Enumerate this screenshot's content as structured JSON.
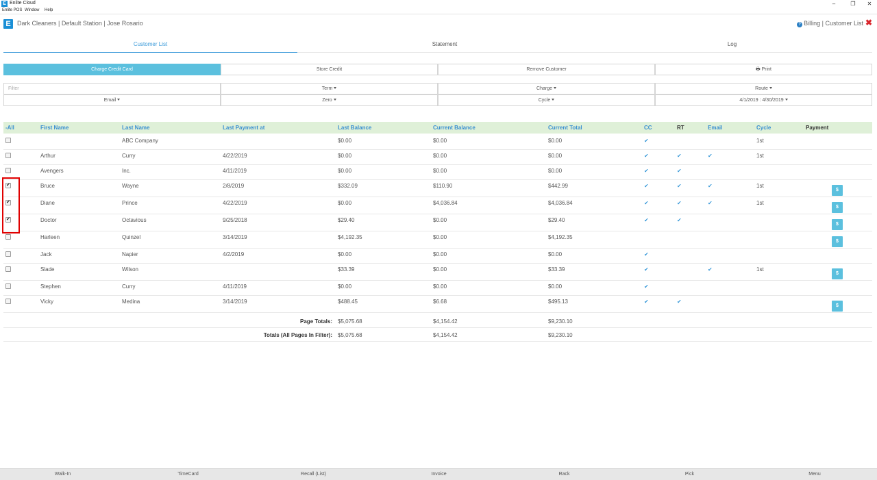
{
  "window": {
    "title": "Enlite Cloud",
    "app_icon": "E",
    "controls": {
      "minimize": "–",
      "restore": "❐",
      "close": "✕"
    }
  },
  "menubar": [
    "Enlite POS",
    "Window",
    "Help"
  ],
  "header": {
    "logo": "E",
    "breadcrumb": "Dark Cleaners | Default Station | Jose Rosario",
    "help_icon": "?",
    "right_label": "Billing | Customer List",
    "close_icon": "✖"
  },
  "tabs": [
    {
      "label": "Customer List",
      "active": true
    },
    {
      "label": "Statement",
      "active": false
    },
    {
      "label": "Log",
      "active": false
    }
  ],
  "actions": {
    "charge": "Charge Credit Card",
    "store_credit": "Store Credit",
    "remove": "Remove Customer",
    "print_icon": "🖶",
    "print": "Print"
  },
  "filters": {
    "filter_placeholder": "Filter",
    "term": "Term",
    "charge": "Charge",
    "route": "Route",
    "email": "Email",
    "zero": "Zero",
    "cycle": "Cycle",
    "date_range": "4/1/2019 : 4/30/2019"
  },
  "columns": {
    "all": "-All",
    "first": "First Name",
    "last": "Last Name",
    "last_payment": "Last Payment at",
    "last_balance": "Last Balance",
    "current_balance": "Current Balance",
    "current_total": "Current Total",
    "cc": "CC",
    "rt": "RT",
    "email": "Email",
    "cycle": "Cycle",
    "payment": "Payment"
  },
  "rows": [
    {
      "checked": false,
      "first": "",
      "last": "ABC Company",
      "last_payment": "",
      "last_balance": "$0.00",
      "current_balance": "$0.00",
      "current_total": "$0.00",
      "cc": true,
      "rt": false,
      "email": false,
      "cycle": "1st",
      "payment": false
    },
    {
      "checked": false,
      "first": "Arthur",
      "last": "Curry",
      "last_payment": "4/22/2019",
      "last_balance": "$0.00",
      "current_balance": "$0.00",
      "current_total": "$0.00",
      "cc": true,
      "rt": true,
      "email": true,
      "cycle": "1st",
      "payment": false
    },
    {
      "checked": false,
      "first": "Avengers",
      "last": "Inc.",
      "last_payment": "4/11/2019",
      "last_balance": "$0.00",
      "current_balance": "$0.00",
      "current_total": "$0.00",
      "cc": true,
      "rt": true,
      "email": false,
      "cycle": "",
      "payment": false
    },
    {
      "checked": true,
      "first": "Bruce",
      "last": "Wayne",
      "last_payment": "2/8/2019",
      "last_balance": "$332.09",
      "current_balance": "$110.90",
      "current_total": "$442.99",
      "cc": true,
      "rt": true,
      "email": true,
      "cycle": "1st",
      "payment": true
    },
    {
      "checked": true,
      "first": "Diane",
      "last": "Prince",
      "last_payment": "4/22/2019",
      "last_balance": "$0.00",
      "current_balance": "$4,036.84",
      "current_total": "$4,036.84",
      "cc": true,
      "rt": true,
      "email": true,
      "cycle": "1st",
      "payment": true
    },
    {
      "checked": true,
      "first": "Doctor",
      "last": "Octavious",
      "last_payment": "9/25/2018",
      "last_balance": "$29.40",
      "current_balance": "$0.00",
      "current_total": "$29.40",
      "cc": true,
      "rt": true,
      "email": false,
      "cycle": "",
      "payment": true
    },
    {
      "checked": false,
      "first": "Harleen",
      "last": "Quinzel",
      "last_payment": "3/14/2019",
      "last_balance": "$4,192.35",
      "current_balance": "$0.00",
      "current_total": "$4,192.35",
      "cc": false,
      "rt": false,
      "email": false,
      "cycle": "",
      "payment": true
    },
    {
      "checked": false,
      "first": "Jack",
      "last": "Napier",
      "last_payment": "4/2/2019",
      "last_balance": "$0.00",
      "current_balance": "$0.00",
      "current_total": "$0.00",
      "cc": true,
      "rt": false,
      "email": false,
      "cycle": "",
      "payment": false
    },
    {
      "checked": false,
      "first": "Slade",
      "last": "Wilson",
      "last_payment": "",
      "last_balance": "$33.39",
      "current_balance": "$0.00",
      "current_total": "$33.39",
      "cc": true,
      "rt": false,
      "email": true,
      "cycle": "1st",
      "payment": true
    },
    {
      "checked": false,
      "first": "Stephen",
      "last": "Curry",
      "last_payment": "4/11/2019",
      "last_balance": "$0.00",
      "current_balance": "$0.00",
      "current_total": "$0.00",
      "cc": true,
      "rt": false,
      "email": false,
      "cycle": "",
      "payment": false
    },
    {
      "checked": false,
      "first": "Vicky",
      "last": "Medina",
      "last_payment": "3/14/2019",
      "last_balance": "$488.45",
      "current_balance": "$6.68",
      "current_total": "$495.13",
      "cc": true,
      "rt": true,
      "email": false,
      "cycle": "",
      "payment": true
    }
  ],
  "check_glyph": "✔",
  "pay_glyph": "$",
  "totals": {
    "page_label": "Page Totals:",
    "page_last_balance": "$5,075.68",
    "page_current_balance": "$4,154.42",
    "page_current_total": "$9,230.10",
    "all_label": "Totals (All Pages In Filter):",
    "all_last_balance": "$5,075.68",
    "all_current_balance": "$4,154.42",
    "all_current_total": "$9,230.10"
  },
  "bottom_bar": [
    "Walk-In",
    "TimeCard",
    "Recall (List)",
    "Invoice",
    "Rack",
    "Pick",
    "Menu"
  ]
}
